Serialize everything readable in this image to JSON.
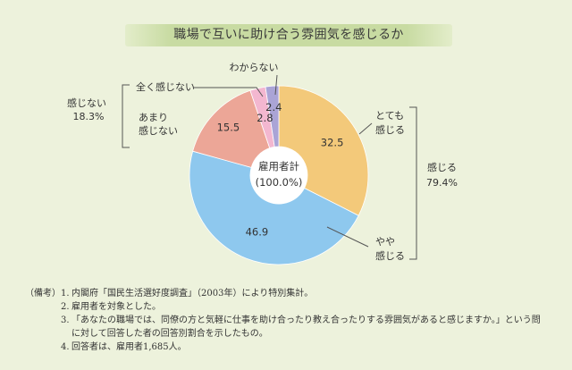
{
  "chart_data": {
    "type": "pie",
    "donut": true,
    "title": "職場で互いに助け合う雰囲気を感じるか",
    "center_label": [
      "雇用者計",
      "(100.0%)"
    ],
    "slices": [
      {
        "label_lines": [
          "とても",
          "感じる"
        ],
        "value": 32.5,
        "color": "#f3c97a"
      },
      {
        "label_lines": [
          "やや",
          "感じる"
        ],
        "value": 46.9,
        "color": "#8ec8ee"
      },
      {
        "label_lines": [
          "あまり",
          "感じない"
        ],
        "value": 15.5,
        "color": "#eca697"
      },
      {
        "label_lines": [
          "全く感じない"
        ],
        "value": 2.8,
        "color": "#f3b7d0"
      },
      {
        "label_lines": [
          "わからない"
        ],
        "value": 2.4,
        "color": "#aaa4d6"
      }
    ],
    "groups": [
      {
        "label": "感じる",
        "total": "79.4%"
      },
      {
        "label": "感じない",
        "total": "18.3%"
      }
    ]
  },
  "notes": {
    "heading": "（備考）",
    "items": [
      {
        "num": "1.",
        "text": "内閣府「国民生活選好度調査」（2003年）により特別集計。"
      },
      {
        "num": "2.",
        "text": "雇用者を対象とした。"
      },
      {
        "num": "3.",
        "text": "「あなたの職場では、同僚の方と気軽に仕事を助け合ったり教え合ったりする雰囲気があると感じますか。」という問に対して回答した者の回答別割合を示したもの。"
      },
      {
        "num": "4.",
        "text": "回答者は、雇用者1,685人。"
      }
    ]
  }
}
